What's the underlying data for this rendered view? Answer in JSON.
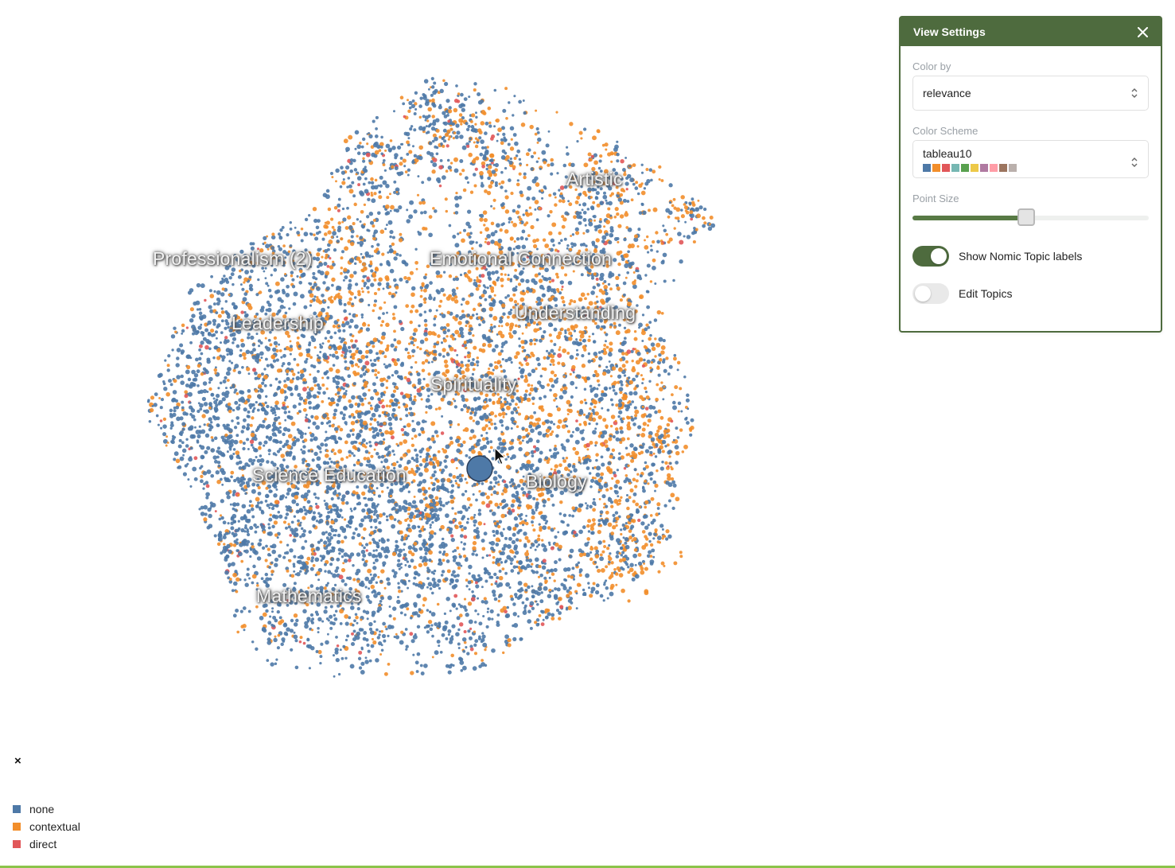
{
  "panel": {
    "title": "View Settings",
    "color_by_label": "Color by",
    "color_by_value": "relevance",
    "color_scheme_label": "Color Scheme",
    "color_scheme_value": "tableau10",
    "scheme_colors": [
      "#4e79a7",
      "#f28e2b",
      "#e15759",
      "#76b7b2",
      "#59a14f",
      "#edc948",
      "#b07aa1",
      "#ff9da7",
      "#9c755f",
      "#bab0ac"
    ],
    "point_size_label": "Point Size",
    "point_size_fraction": 0.48,
    "show_topics_label": "Show Nomic Topic labels",
    "show_topics_on": true,
    "edit_topics_label": "Edit Topics",
    "edit_topics_on": false
  },
  "topics": [
    "Artistic",
    "Professionalism (2)",
    "Emotional Connection",
    "Understanding",
    "Leadership",
    "Spirituality",
    "Science Education",
    "Biology",
    "Mathematics"
  ],
  "legend": {
    "close_symbol": "×",
    "items": [
      {
        "label": "none",
        "color": "#4e79a7"
      },
      {
        "label": "contextual",
        "color": "#f28e2b"
      },
      {
        "label": "direct",
        "color": "#e15759"
      }
    ]
  },
  "colors": {
    "accent": "#4e6b3e",
    "none": "#4e79a7",
    "contextual": "#f28e2b",
    "direct": "#e15759"
  }
}
